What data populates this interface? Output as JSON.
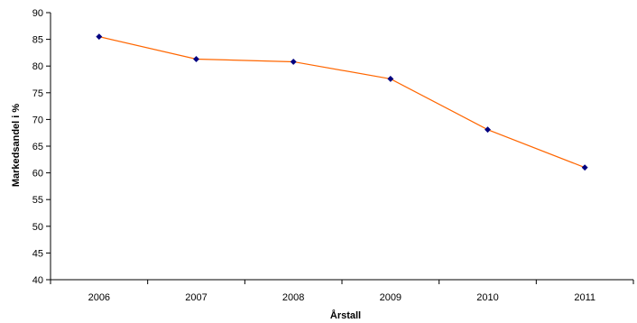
{
  "chart_data": {
    "type": "line",
    "title": "",
    "xlabel": "Årstall",
    "ylabel": "Markedsandel i %",
    "categories": [
      "2006",
      "2007",
      "2008",
      "2009",
      "2010",
      "2011"
    ],
    "series": [
      {
        "values": [
          85.5,
          81.3,
          80.8,
          77.6,
          68.1,
          61.0
        ]
      }
    ],
    "ylim": [
      40,
      90
    ],
    "yticks": [
      "40",
      "45",
      "50",
      "55",
      "60",
      "65",
      "70",
      "75",
      "80",
      "85",
      "90"
    ],
    "grid": false,
    "legend": "none",
    "line_color": "#FF6600",
    "marker_color": "#000080"
  }
}
